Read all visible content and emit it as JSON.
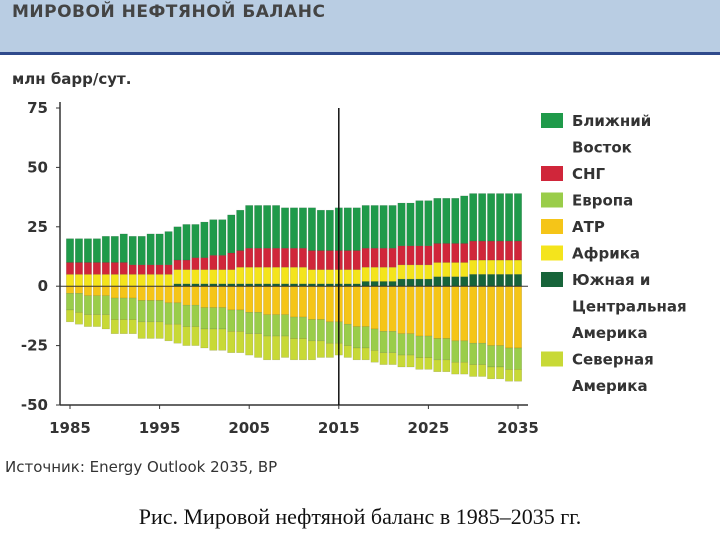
{
  "header": {
    "title": "МИРОВОЙ НЕФТЯНОЙ БАЛАНС"
  },
  "source": "Источник: Energy Outlook 2035, BP",
  "caption": "Рис. Мировой нефтяной баланс в 1985–2035 гг.",
  "chart_data": {
    "type": "bar",
    "stacked": true,
    "title": "МИРОВОЙ НЕФТЯНОЙ БАЛАНС",
    "ylabel": "млн барр/сут.",
    "xlabel": "",
    "ylim": [
      -50,
      75
    ],
    "yticks": [
      75,
      50,
      25,
      0,
      -25,
      -50
    ],
    "xticks": [
      "1985",
      "1995",
      "2005",
      "2015",
      "2025",
      "2035"
    ],
    "x": [
      1985,
      1986,
      1987,
      1988,
      1989,
      1990,
      1991,
      1992,
      1993,
      1994,
      1995,
      1996,
      1997,
      1998,
      1999,
      2000,
      2001,
      2002,
      2003,
      2004,
      2005,
      2006,
      2007,
      2008,
      2009,
      2010,
      2011,
      2012,
      2013,
      2014,
      2015,
      2016,
      2017,
      2018,
      2019,
      2020,
      2021,
      2022,
      2023,
      2024,
      2025,
      2026,
      2027,
      2028,
      2029,
      2030,
      2031,
      2032,
      2033,
      2034,
      2035
    ],
    "divider_x": 2015,
    "grid": false,
    "legend_position": "right",
    "series": [
      {
        "name": "Ближний Восток",
        "color": "#1f9a4a",
        "values": [
          10,
          10,
          10,
          10,
          11,
          11,
          12,
          12,
          12,
          13,
          13,
          14,
          14,
          15,
          14,
          15,
          15,
          15,
          16,
          17,
          18,
          18,
          18,
          18,
          17,
          17,
          17,
          18,
          17,
          17,
          18,
          18,
          18,
          18,
          18,
          18,
          18,
          18,
          18,
          19,
          19,
          19,
          19,
          19,
          20,
          20,
          20,
          20,
          20,
          20,
          20
        ]
      },
      {
        "name": "СНГ",
        "color": "#d0263a",
        "values": [
          5,
          5,
          5,
          5,
          5,
          5,
          5,
          4,
          4,
          4,
          4,
          4,
          4,
          4,
          5,
          5,
          6,
          6,
          7,
          7,
          8,
          8,
          8,
          8,
          8,
          8,
          8,
          8,
          8,
          8,
          8,
          8,
          8,
          8,
          8,
          8,
          8,
          8,
          8,
          8,
          8,
          8,
          8,
          8,
          8,
          8,
          8,
          8,
          8,
          8,
          8
        ]
      },
      {
        "name": "Европа",
        "color": "#9acd4a",
        "values": [
          -7,
          -8,
          -8,
          -8,
          -8,
          -9,
          -9,
          -9,
          -9,
          -9,
          -9,
          -9,
          -9,
          -9,
          -9,
          -9,
          -9,
          -9,
          -9,
          -9,
          -9,
          -9,
          -9,
          -9,
          -9,
          -9,
          -9,
          -9,
          -9,
          -9,
          -9,
          -9,
          -9,
          -9,
          -9,
          -9,
          -9,
          -9,
          -9,
          -9,
          -9,
          -9,
          -9,
          -9,
          -9,
          -9,
          -9,
          -9,
          -9,
          -9,
          -9
        ]
      },
      {
        "name": "АТР",
        "color": "#f5c518",
        "values": [
          -3,
          -3,
          -4,
          -4,
          -4,
          -5,
          -5,
          -5,
          -6,
          -6,
          -6,
          -7,
          -7,
          -8,
          -8,
          -9,
          -9,
          -9,
          -10,
          -10,
          -11,
          -11,
          -12,
          -12,
          -12,
          -13,
          -13,
          -14,
          -14,
          -15,
          -15,
          -16,
          -17,
          -17,
          -18,
          -19,
          -19,
          -20,
          -20,
          -21,
          -21,
          -22,
          -22,
          -23,
          -23,
          -24,
          -24,
          -25,
          -25,
          -26,
          -26
        ]
      },
      {
        "name": "Африка",
        "color": "#f4e41c",
        "values": [
          5,
          5,
          5,
          5,
          5,
          5,
          5,
          5,
          5,
          5,
          5,
          5,
          6,
          6,
          6,
          6,
          6,
          6,
          6,
          7,
          7,
          7,
          7,
          7,
          7,
          7,
          7,
          6,
          6,
          6,
          6,
          6,
          6,
          6,
          6,
          6,
          6,
          6,
          6,
          6,
          6,
          6,
          6,
          6,
          6,
          6,
          6,
          6,
          6,
          6,
          6
        ]
      },
      {
        "name": "Южная и Центральная Америка",
        "color": "#17643a",
        "values": [
          0,
          0,
          0,
          0,
          0,
          0,
          0,
          0,
          0,
          0,
          0,
          0,
          1,
          1,
          1,
          1,
          1,
          1,
          1,
          1,
          1,
          1,
          1,
          1,
          1,
          1,
          1,
          1,
          1,
          1,
          1,
          1,
          1,
          2,
          2,
          2,
          2,
          3,
          3,
          3,
          3,
          4,
          4,
          4,
          4,
          5,
          5,
          5,
          5,
          5,
          5
        ]
      },
      {
        "name": "Северная Америка",
        "color": "#c8d936",
        "values": [
          -5,
          -5,
          -5,
          -5,
          -6,
          -6,
          -6,
          -6,
          -7,
          -7,
          -7,
          -7,
          -8,
          -8,
          -8,
          -8,
          -9,
          -9,
          -9,
          -9,
          -9,
          -10,
          -10,
          -10,
          -9,
          -9,
          -9,
          -8,
          -7,
          -6,
          -5,
          -5,
          -5,
          -5,
          -5,
          -5,
          -5,
          -5,
          -5,
          -5,
          -5,
          -5,
          -5,
          -5,
          -5,
          -5,
          -5,
          -5,
          -5,
          -5,
          -5
        ]
      }
    ]
  }
}
